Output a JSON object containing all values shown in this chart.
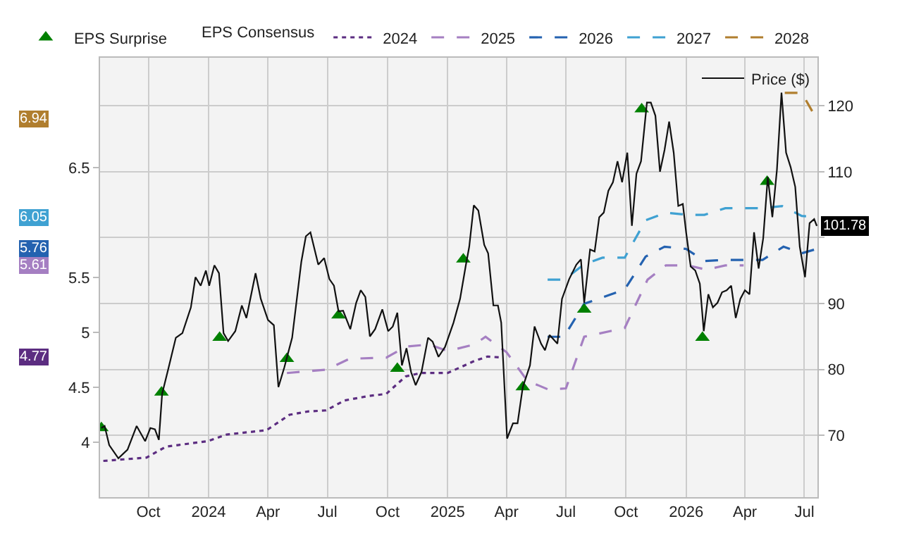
{
  "chart_data": {
    "type": "line",
    "legend_title": "EPS Consensus",
    "legend": "top",
    "grid": true,
    "marker": "none",
    "xlim": [
      "2023-07-19",
      "2026-07-21"
    ],
    "xticks": [
      {
        "value": "2023-10-01",
        "label": "Oct"
      },
      {
        "value": "2024-01-01",
        "label": "2024"
      },
      {
        "value": "2024-04-01",
        "label": "Apr"
      },
      {
        "value": "2024-07-01",
        "label": "Jul"
      },
      {
        "value": "2024-10-01",
        "label": "Oct"
      },
      {
        "value": "2025-01-01",
        "label": "2025"
      },
      {
        "value": "2025-04-01",
        "label": "Apr"
      },
      {
        "value": "2025-07-01",
        "label": "Jul"
      },
      {
        "value": "2025-10-01",
        "label": "Oct"
      },
      {
        "value": "2026-01-01",
        "label": "2026"
      },
      {
        "value": "2026-04-01",
        "label": "Apr"
      },
      {
        "value": "2026-07-01",
        "label": "Jul"
      }
    ],
    "ylim": [
      3.5,
      7.5
    ],
    "yticks": [
      4,
      4.5,
      5,
      5.5,
      6.5
    ],
    "y2lim": [
      60.6,
      127.3
    ],
    "y2ticks": [
      70,
      80,
      90,
      {
        "value": 100,
        "label": null
      },
      110,
      120
    ],
    "annotations": [
      "6.94",
      "6.05",
      "5.76",
      "5.61",
      "4.77"
    ],
    "series": [
      {
        "name": "EPS Surprise",
        "type": "scatter",
        "marker": "triangle",
        "axis": "y2",
        "color": "#008000",
        "x": [
          "2023-07-21",
          "2023-10-21",
          "2024-01-18",
          "2024-04-30",
          "2024-07-18",
          "2024-10-16",
          "2025-01-25",
          "2025-04-26",
          "2025-07-29",
          "2025-10-25",
          "2026-01-26",
          "2026-05-05"
        ],
        "values": [
          71.1,
          76.5,
          84.8,
          81.6,
          88.2,
          80.1,
          96.7,
          77.3,
          89.1,
          119.5,
          84.8,
          108.5
        ]
      },
      {
        "name": "2024",
        "line_style": "dotted",
        "color": "#5c2d81",
        "x": [
          "2023-07-24",
          "2023-09-28",
          "2023-10-28",
          "2023-12-31",
          "2024-01-29",
          "2024-03-30",
          "2024-05-04",
          "2024-06-01",
          "2024-06-29",
          "2024-07-27",
          "2024-09-01",
          "2024-09-29",
          "2024-10-29",
          "2024-11-21",
          "2025-01-01",
          "2025-02-11",
          "2025-03-03",
          "2025-03-27"
        ],
        "values": [
          3.83,
          3.86,
          3.96,
          4.01,
          4.07,
          4.11,
          4.25,
          4.28,
          4.29,
          4.38,
          4.42,
          4.44,
          4.6,
          4.63,
          4.63,
          4.74,
          4.78,
          4.77
        ]
      },
      {
        "name": "2025",
        "line_style": "dashed",
        "color": "#a57fc2",
        "x": [
          "2024-04-30",
          "2024-06-29",
          "2024-08-04",
          "2024-09-29",
          "2024-10-29",
          "2024-12-04",
          "2025-01-01",
          "2025-02-11",
          "2025-02-28",
          "2025-04-01",
          "2025-05-03",
          "2025-06-04",
          "2025-07-01",
          "2025-07-29",
          "2025-09-29",
          "2025-11-03",
          "2025-12-01",
          "2026-01-04",
          "2026-02-01",
          "2026-03-02",
          "2026-03-30"
        ],
        "values": [
          4.63,
          4.66,
          4.76,
          4.77,
          4.87,
          4.89,
          4.83,
          4.89,
          4.96,
          4.82,
          4.56,
          4.48,
          4.49,
          4.96,
          5.04,
          5.48,
          5.61,
          5.61,
          5.57,
          5.61,
          5.61
        ]
      },
      {
        "name": "2026",
        "line_style": "dashed",
        "color": "#2462b0",
        "x": [
          "2025-06-03",
          "2025-06-28",
          "2025-07-29",
          "2025-09-29",
          "2025-10-31",
          "2025-11-29",
          "2026-01-01",
          "2026-01-29",
          "2026-03-02",
          "2026-04-28",
          "2026-05-30",
          "2026-06-27",
          "2026-07-20"
        ],
        "values": [
          4.96,
          4.96,
          5.26,
          5.39,
          5.69,
          5.78,
          5.76,
          5.65,
          5.66,
          5.66,
          5.78,
          5.72,
          5.76
        ]
      },
      {
        "name": "2027",
        "line_style": "dashed",
        "color": "#3fa1d2",
        "x": [
          "2025-06-03",
          "2025-06-28",
          "2025-07-29",
          "2025-08-26",
          "2025-09-29",
          "2025-10-31",
          "2025-12-01",
          "2026-01-04",
          "2026-01-29",
          "2026-03-02",
          "2026-04-28",
          "2026-05-28",
          "2026-06-27",
          "2026-07-20"
        ],
        "values": [
          5.48,
          5.48,
          5.62,
          5.68,
          5.68,
          6.02,
          6.09,
          6.07,
          6.07,
          6.13,
          6.13,
          6.15,
          6.06,
          6.05
        ]
      },
      {
        "name": "2028",
        "line_style": "dashed",
        "color": "#b07e2e",
        "x": [
          "2026-06-01",
          "2026-06-27",
          "2026-07-20"
        ],
        "values": [
          7.18,
          7.18,
          6.94
        ]
      },
      {
        "name": "Price ($)",
        "line_style": "solid",
        "axis": "y2",
        "color": "#111111",
        "x": [
          "2023-07-21",
          "2023-07-26",
          "2023-08-02",
          "2023-08-16",
          "2023-08-30",
          "2023-09-13",
          "2023-09-26",
          "2023-10-04",
          "2023-10-11",
          "2023-10-17",
          "2023-10-22",
          "2023-11-01",
          "2023-11-12",
          "2023-11-22",
          "2023-12-05",
          "2023-12-12",
          "2023-12-20",
          "2023-12-28",
          "2024-01-02",
          "2024-01-10",
          "2024-01-17",
          "2024-01-24",
          "2024-01-31",
          "2024-02-11",
          "2024-02-21",
          "2024-02-28",
          "2024-03-13",
          "2024-03-21",
          "2024-04-01",
          "2024-04-10",
          "2024-04-17",
          "2024-04-26",
          "2024-05-08",
          "2024-05-22",
          "2024-05-29",
          "2024-06-05",
          "2024-06-17",
          "2024-06-26",
          "2024-07-04",
          "2024-07-11",
          "2024-07-18",
          "2024-07-25",
          "2024-08-05",
          "2024-08-14",
          "2024-08-21",
          "2024-08-28",
          "2024-09-04",
          "2024-09-12",
          "2024-09-23",
          "2024-10-02",
          "2024-10-09",
          "2024-10-16",
          "2024-10-23",
          "2024-10-30",
          "2024-11-06",
          "2024-11-13",
          "2024-11-22",
          "2024-12-02",
          "2024-12-09",
          "2024-12-18",
          "2024-12-28",
          "2025-01-10",
          "2025-01-20",
          "2025-01-29",
          "2025-02-03",
          "2025-02-10",
          "2025-02-17",
          "2025-02-26",
          "2025-03-04",
          "2025-03-12",
          "2025-03-19",
          "2025-03-24",
          "2025-04-02",
          "2025-04-11",
          "2025-04-18",
          "2025-04-26",
          "2025-05-07",
          "2025-05-14",
          "2025-05-24",
          "2025-05-30",
          "2025-06-06",
          "2025-06-18",
          "2025-06-25",
          "2025-07-06",
          "2025-07-17",
          "2025-07-24",
          "2025-07-29",
          "2025-08-07",
          "2025-08-14",
          "2025-08-21",
          "2025-08-28",
          "2025-09-04",
          "2025-09-11",
          "2025-09-18",
          "2025-09-25",
          "2025-10-03",
          "2025-10-10",
          "2025-10-17",
          "2025-10-24",
          "2025-11-02",
          "2025-11-08",
          "2025-11-15",
          "2025-11-22",
          "2025-11-29",
          "2025-12-06",
          "2025-12-13",
          "2025-12-20",
          "2025-12-27",
          "2026-01-01",
          "2026-01-08",
          "2026-01-15",
          "2026-01-22",
          "2026-01-28",
          "2026-02-04",
          "2026-02-11",
          "2026-02-18",
          "2026-02-25",
          "2026-03-04",
          "2026-03-11",
          "2026-03-18",
          "2026-03-25",
          "2026-04-01",
          "2026-04-08",
          "2026-04-15",
          "2026-04-22",
          "2026-04-29",
          "2026-05-06",
          "2026-05-13",
          "2026-05-20",
          "2026-05-27",
          "2026-06-03",
          "2026-06-10",
          "2026-06-17",
          "2026-06-24",
          "2026-07-02",
          "2026-07-09",
          "2026-07-16",
          "2026-07-20"
        ],
        "values": [
          71.1,
          71.4,
          68.5,
          66.5,
          67.8,
          71.4,
          69.1,
          71.1,
          70.9,
          69.3,
          76.3,
          80.3,
          84.8,
          85.5,
          89.4,
          94.0,
          92.7,
          95.0,
          92.7,
          95.8,
          94.6,
          85.5,
          84.3,
          85.8,
          89.7,
          87.8,
          94.6,
          90.7,
          87.5,
          86.7,
          77.3,
          80.3,
          84.8,
          96.3,
          100.2,
          100.8,
          95.9,
          96.9,
          93.7,
          92.7,
          88.8,
          88.9,
          86.1,
          90.1,
          92.0,
          91.0,
          85.0,
          86.1,
          89.1,
          85.8,
          86.5,
          88.6,
          80.6,
          83.2,
          79.6,
          77.6,
          79.6,
          84.8,
          84.2,
          81.9,
          83.4,
          87.1,
          90.7,
          95.9,
          98.6,
          104.9,
          104.1,
          98.9,
          97.6,
          89.7,
          89.7,
          87.1,
          69.5,
          71.8,
          71.8,
          77.3,
          80.6,
          86.5,
          83.9,
          82.9,
          85.2,
          83.9,
          90.7,
          93.7,
          95.9,
          96.7,
          90.1,
          98.2,
          97.9,
          103.1,
          103.8,
          107.1,
          108.4,
          111.6,
          108.4,
          112.9,
          101.8,
          109.7,
          111.6,
          120.5,
          120.5,
          118.5,
          110.0,
          113.3,
          117.6,
          112.9,
          104.8,
          105.1,
          100.8,
          95.6,
          95.0,
          93.0,
          85.8,
          91.4,
          89.4,
          90.1,
          91.7,
          92.0,
          92.7,
          87.8,
          90.7,
          92.0,
          91.4,
          100.8,
          95.3,
          99.9,
          109.2,
          103.1,
          110.3,
          122.0,
          112.9,
          110.7,
          107.7,
          98.6,
          94.0,
          102.2,
          102.8,
          101.78
        ],
        "value_labels": [
          null,
          null,
          null,
          null,
          null,
          null,
          null,
          null,
          null,
          null,
          null,
          null,
          null,
          null,
          null,
          null,
          null,
          null,
          null,
          null,
          null,
          null,
          null,
          null,
          null,
          null,
          null,
          null,
          null,
          null,
          null,
          null,
          null,
          null,
          null,
          null,
          null,
          null,
          null,
          null,
          null,
          null,
          null,
          null,
          null,
          null,
          null,
          null,
          null,
          null,
          null,
          null,
          null,
          null,
          null,
          null,
          null,
          null,
          null,
          null,
          null,
          null,
          null,
          null,
          null,
          null,
          null,
          null,
          null,
          null,
          null,
          null,
          null,
          null,
          null,
          null,
          null,
          null,
          null,
          null,
          null,
          null,
          null,
          null,
          null,
          null,
          null,
          null,
          null,
          null,
          null,
          null,
          null,
          null,
          null,
          null,
          null,
          null,
          null,
          null,
          null,
          null,
          null,
          null,
          null,
          null,
          null,
          null,
          null,
          null,
          null,
          null,
          null,
          null,
          null,
          null,
          null,
          null,
          null,
          null,
          null,
          null,
          null,
          null,
          null,
          null,
          null,
          null,
          null,
          null,
          null,
          null,
          null,
          null,
          null,
          null,
          null,
          "101.78"
        ]
      }
    ]
  }
}
